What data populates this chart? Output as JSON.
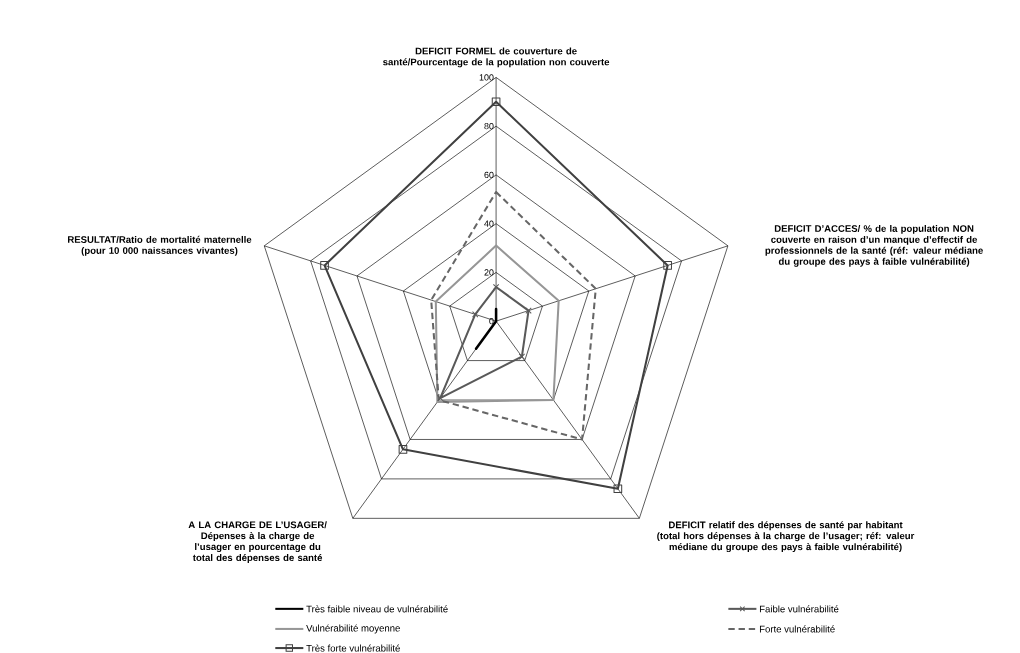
{
  "chart_data": {
    "type": "radar",
    "categories": [
      "DEFICIT FORMEL de couverture de santé/Pourcentage de la population non couverte",
      "DEFICIT D’ACCES/ % de la population NON couverte en raison d’un manque d’effectif de professionnels de la santé (réf: valeur médiane du groupe des pays à faible vulnérabilité)",
      "DEFICIT relatif des dépenses de santé par habitant (total hors dépenses à la charge de l’usager; réf: valeur médiane du groupe des pays à faible vulnérabilité)",
      "A LA CHARGE DE L’USAGER/ Dépenses à la charge de l’usager en pourcentage du total des dépenses de santé",
      "RESULTAT/Ratio de mortalité maternelle (pour 10 000 naissances vivantes)"
    ],
    "series": [
      {
        "name": "Très faible niveau de vulnérabilité",
        "color": "#000000",
        "values": [
          5,
          0,
          0,
          14,
          0
        ]
      },
      {
        "name": "Faible vulnérabilité",
        "color": "#595959",
        "marker": "cross",
        "values": [
          14,
          14,
          18,
          39,
          9
        ]
      },
      {
        "name": "Vulnérabilité moyenne",
        "color": "#969696",
        "values": [
          31,
          27,
          40,
          41,
          26
        ]
      },
      {
        "name": "Forte vulnérabilité",
        "color": "#666666",
        "line_style": "dashed",
        "values": [
          53,
          43,
          60,
          40,
          28
        ]
      },
      {
        "name": "Très forte vulnérabilité",
        "color": "#404040",
        "marker": "square",
        "values": [
          90,
          74,
          85,
          65,
          74
        ]
      }
    ],
    "ylim": [
      0,
      100
    ],
    "yticks": [
      0,
      20,
      40,
      60,
      80,
      100
    ],
    "grid": true,
    "legend": "bottom"
  }
}
